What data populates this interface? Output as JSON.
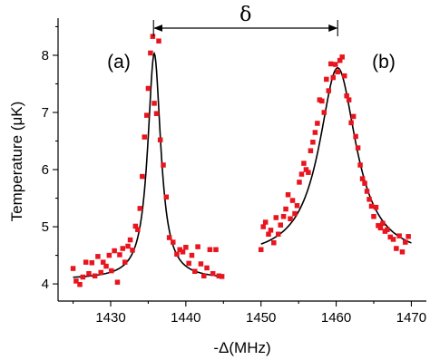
{
  "chart_data": {
    "type": "scatter",
    "xlabel": "-Δ(MHz)",
    "ylabel": "Temperature (μK)",
    "xlim": [
      1423,
      1472
    ],
    "ylim": [
      3.7,
      8.65
    ],
    "x_ticks": [
      1430,
      1440,
      1450,
      1460,
      1470
    ],
    "y_ticks": [
      4,
      5,
      6,
      7,
      8
    ],
    "grid": false,
    "annotations": {
      "panel_a": "(a)",
      "panel_b": "(b)",
      "delta": "δ",
      "delta_arrow_x": [
        1435.7,
        1460.2
      ]
    },
    "series": [
      {
        "marker_color": "#e8141e",
        "marker": "square",
        "points": [
          [
            1425.0,
            4.27
          ],
          [
            1425.4,
            4.05
          ],
          [
            1425.9,
            3.99
          ],
          [
            1426.3,
            4.12
          ],
          [
            1426.7,
            4.38
          ],
          [
            1427.1,
            4.18
          ],
          [
            1427.5,
            4.37
          ],
          [
            1427.9,
            4.14
          ],
          [
            1428.3,
            4.48
          ],
          [
            1428.7,
            4.2
          ],
          [
            1429.0,
            4.38
          ],
          [
            1429.4,
            4.31
          ],
          [
            1429.8,
            4.5
          ],
          [
            1430.1,
            4.23
          ],
          [
            1430.5,
            4.58
          ],
          [
            1430.9,
            4.03
          ],
          [
            1431.2,
            4.51
          ],
          [
            1431.6,
            4.62
          ],
          [
            1431.9,
            4.38
          ],
          [
            1432.3,
            4.66
          ],
          [
            1432.6,
            4.77
          ],
          [
            1432.9,
            4.59
          ],
          [
            1433.3,
            5.01
          ],
          [
            1433.6,
            4.95
          ],
          [
            1433.9,
            5.32
          ],
          [
            1434.2,
            5.88
          ],
          [
            1434.5,
            6.57
          ],
          [
            1434.8,
            6.95
          ],
          [
            1435.0,
            7.42
          ],
          [
            1435.3,
            8.04
          ],
          [
            1435.6,
            8.33
          ],
          [
            1435.8,
            7.16
          ],
          [
            1436.1,
            6.98
          ],
          [
            1436.4,
            8.25
          ],
          [
            1436.6,
            6.52
          ],
          [
            1437.0,
            6.08
          ],
          [
            1437.4,
            5.52
          ],
          [
            1437.8,
            4.81
          ],
          [
            1438.3,
            4.73
          ],
          [
            1438.8,
            4.52
          ],
          [
            1439.2,
            4.6
          ],
          [
            1439.6,
            4.56
          ],
          [
            1440.0,
            4.64
          ],
          [
            1440.4,
            4.36
          ],
          [
            1440.8,
            4.5
          ],
          [
            1441.2,
            4.22
          ],
          [
            1441.6,
            4.65
          ],
          [
            1442.0,
            4.35
          ],
          [
            1442.4,
            4.14
          ],
          [
            1442.8,
            4.28
          ],
          [
            1443.2,
            4.6
          ],
          [
            1443.6,
            4.18
          ],
          [
            1444.0,
            4.6
          ],
          [
            1444.4,
            4.14
          ],
          [
            1444.8,
            4.13
          ],
          [
            1450.0,
            4.6
          ],
          [
            1450.3,
            5.0
          ],
          [
            1450.6,
            5.08
          ],
          [
            1451.0,
            4.87
          ],
          [
            1451.3,
            4.94
          ],
          [
            1451.7,
            4.72
          ],
          [
            1452.0,
            5.16
          ],
          [
            1452.3,
            4.87
          ],
          [
            1452.6,
            5.03
          ],
          [
            1453.0,
            5.18
          ],
          [
            1453.3,
            5.31
          ],
          [
            1453.6,
            5.56
          ],
          [
            1453.9,
            5.14
          ],
          [
            1454.2,
            5.46
          ],
          [
            1454.5,
            5.23
          ],
          [
            1454.8,
            5.37
          ],
          [
            1455.1,
            5.78
          ],
          [
            1455.4,
            5.92
          ],
          [
            1455.7,
            6.11
          ],
          [
            1456.0,
            6.0
          ],
          [
            1456.3,
            5.95
          ],
          [
            1456.6,
            6.33
          ],
          [
            1456.9,
            6.48
          ],
          [
            1457.2,
            6.65
          ],
          [
            1457.5,
            6.81
          ],
          [
            1457.8,
            7.22
          ],
          [
            1458.1,
            7.2
          ],
          [
            1458.4,
            7.0
          ],
          [
            1458.7,
            7.58
          ],
          [
            1459.0,
            7.38
          ],
          [
            1459.3,
            7.85
          ],
          [
            1459.6,
            7.61
          ],
          [
            1459.9,
            7.84
          ],
          [
            1460.2,
            7.71
          ],
          [
            1460.5,
            7.91
          ],
          [
            1460.8,
            7.97
          ],
          [
            1461.1,
            7.64
          ],
          [
            1461.4,
            7.29
          ],
          [
            1461.7,
            7.22
          ],
          [
            1462.0,
            6.82
          ],
          [
            1462.3,
            6.93
          ],
          [
            1462.6,
            6.58
          ],
          [
            1462.9,
            6.38
          ],
          [
            1463.2,
            6.08
          ],
          [
            1463.5,
            5.84
          ],
          [
            1463.8,
            5.76
          ],
          [
            1464.1,
            5.62
          ],
          [
            1464.4,
            5.48
          ],
          [
            1464.7,
            5.36
          ],
          [
            1465.0,
            5.18
          ],
          [
            1465.3,
            5.34
          ],
          [
            1465.6,
            5.02
          ],
          [
            1465.9,
            4.98
          ],
          [
            1466.2,
            5.06
          ],
          [
            1466.5,
            4.92
          ],
          [
            1466.8,
            4.95
          ],
          [
            1467.2,
            4.82
          ],
          [
            1467.6,
            4.78
          ],
          [
            1468.0,
            4.62
          ],
          [
            1468.4,
            4.84
          ],
          [
            1468.8,
            4.56
          ],
          [
            1469.2,
            4.73
          ],
          [
            1469.6,
            4.83
          ]
        ]
      }
    ],
    "fits": [
      {
        "type": "lorentzian",
        "center": 1435.8,
        "amplitude": 3.95,
        "width": 1.05,
        "offset": 4.08,
        "x_range": [
          1425.0,
          1445.0
        ]
      },
      {
        "type": "lorentzian",
        "center": 1460.2,
        "amplitude": 3.35,
        "width": 3.0,
        "offset": 4.43,
        "x_range": [
          1450.0,
          1470.0
        ]
      }
    ]
  }
}
